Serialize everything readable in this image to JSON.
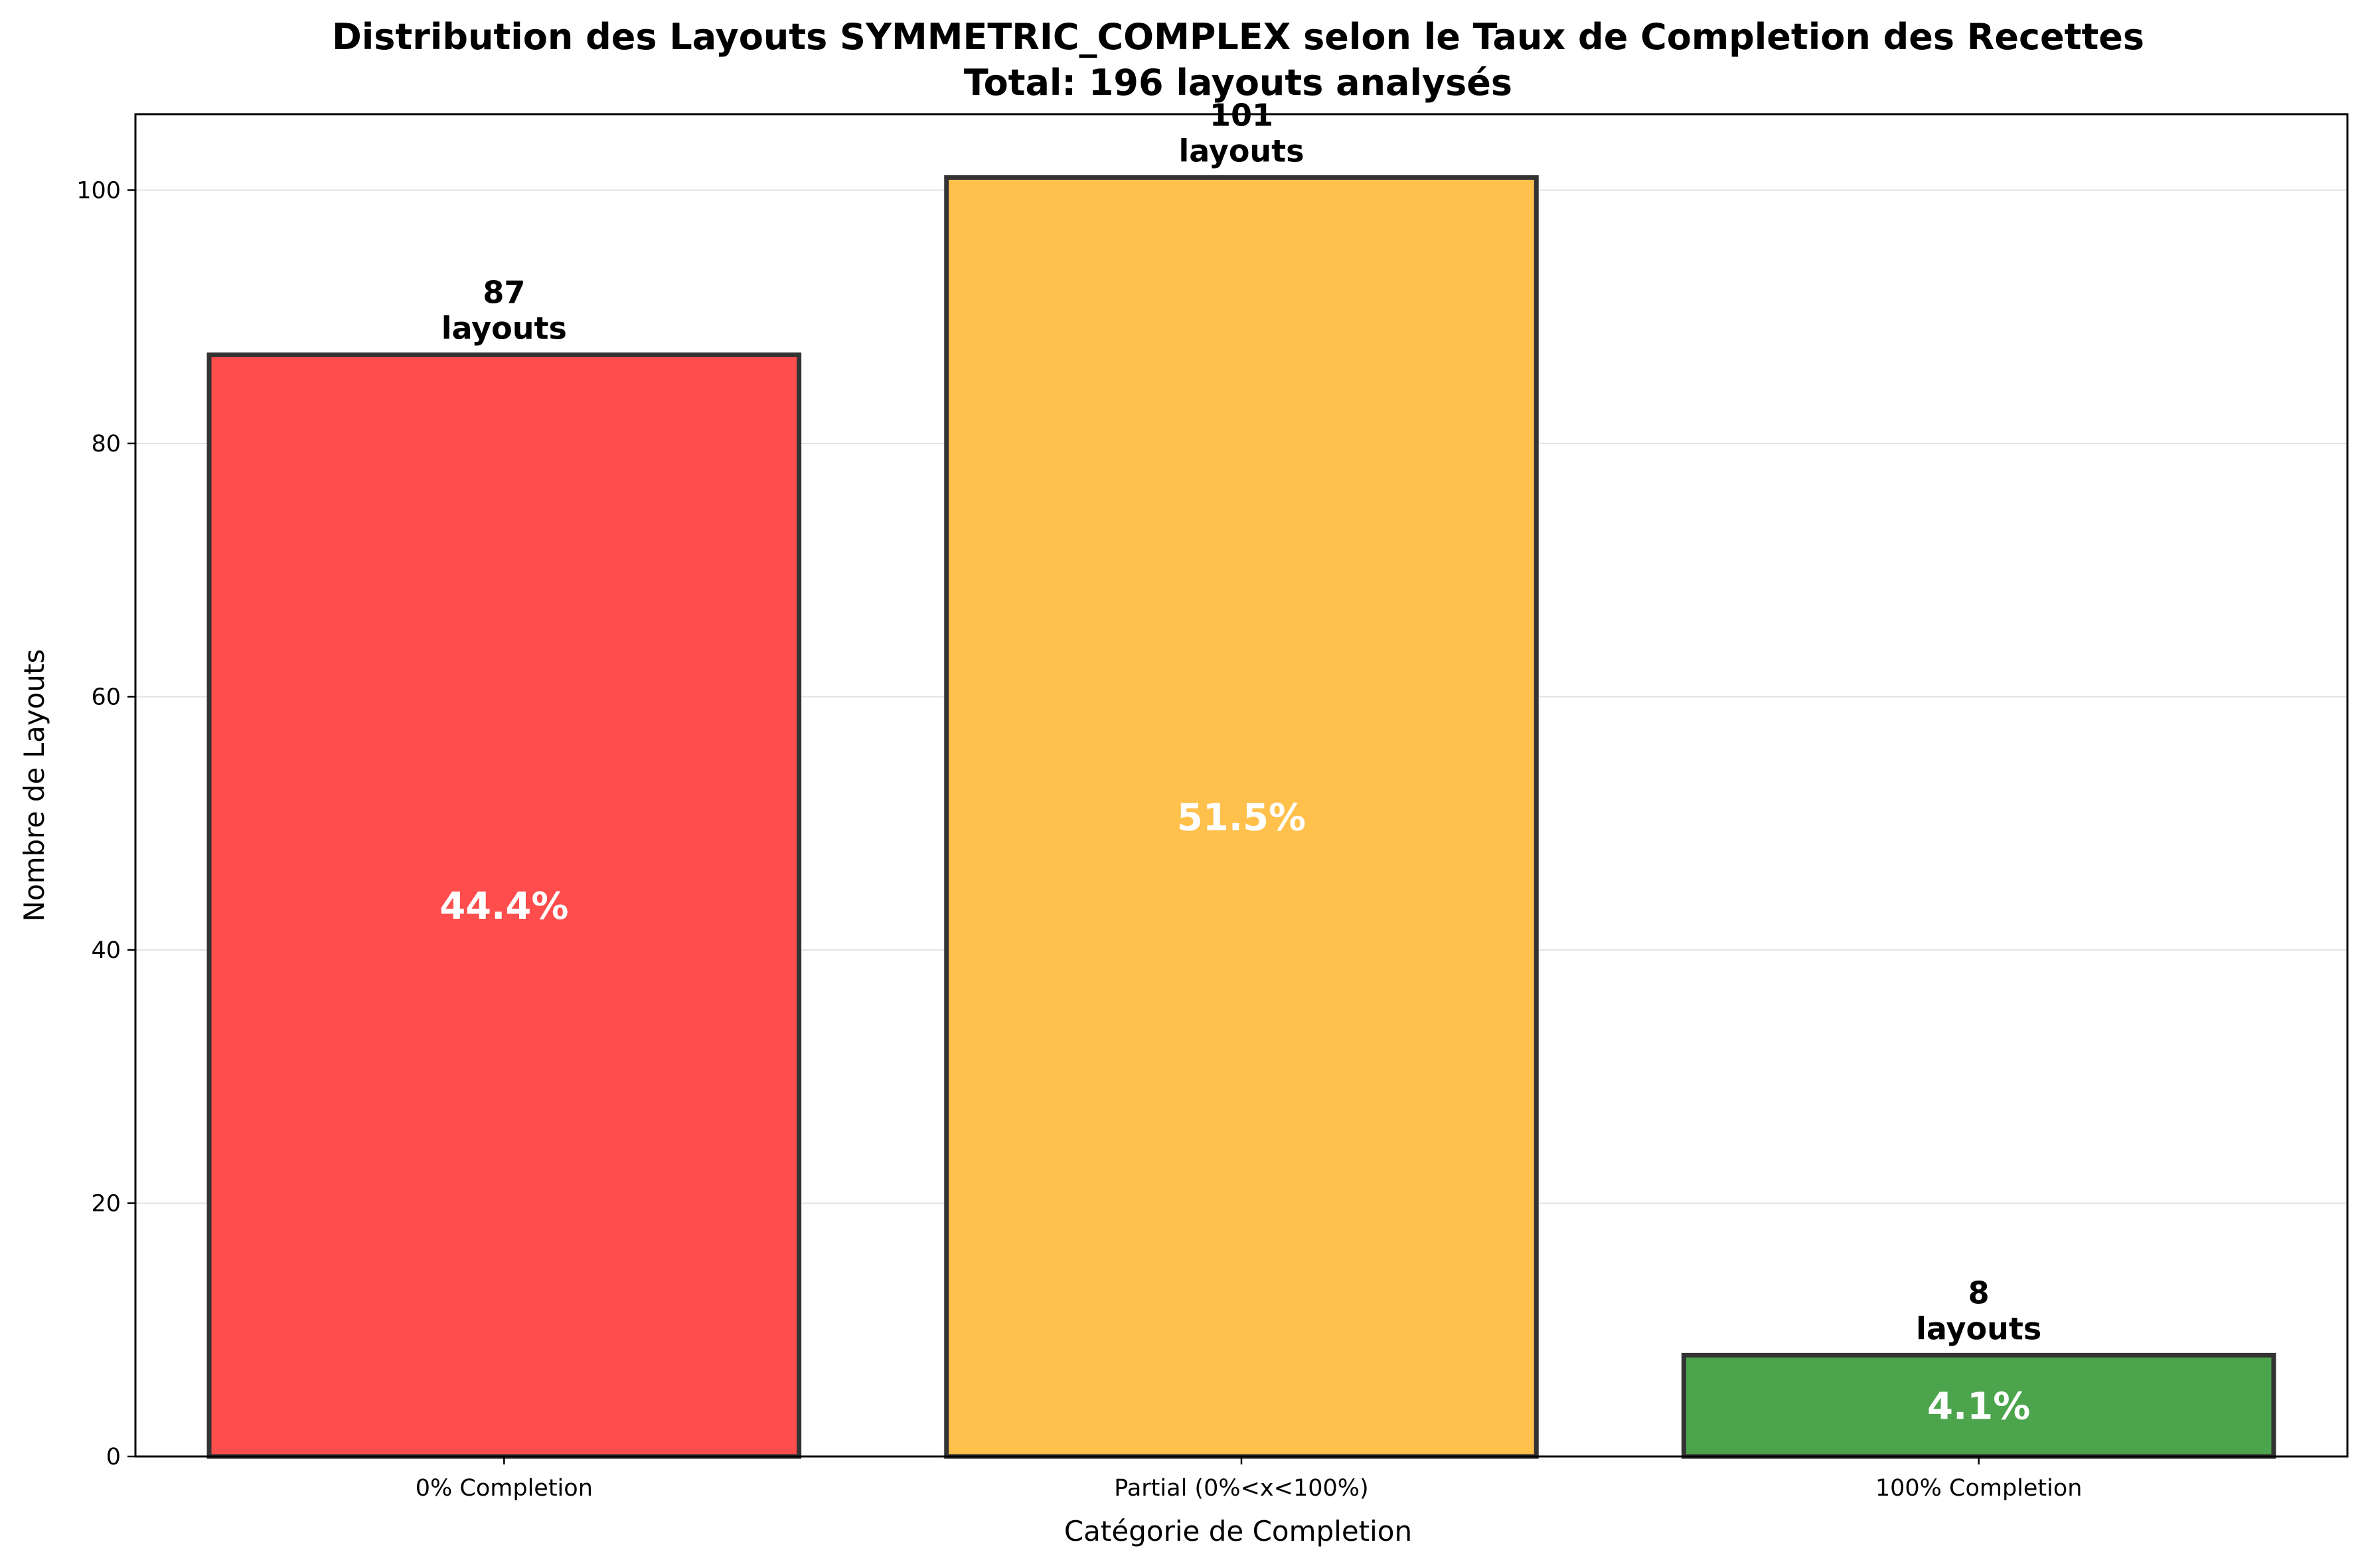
{
  "chart_data": {
    "type": "bar",
    "title_line1": "Distribution des Layouts SYMMETRIC_COMPLEX selon le Taux de Completion des Recettes",
    "title_line2": "Total: 196 layouts analysés",
    "xlabel": "Catégorie de Completion",
    "ylabel": "Nombre de Layouts",
    "categories": [
      "0% Completion",
      "Partial (0%<x<100%)",
      "100% Completion"
    ],
    "values": [
      87,
      101,
      8
    ],
    "colors": [
      "#ff4c4c",
      "#ffc04c",
      "#4ca44c"
    ],
    "count_label_line1": [
      "87",
      "101",
      "8"
    ],
    "count_label_line2": [
      "layouts",
      "layouts",
      "layouts"
    ],
    "percent_labels": [
      "44.4%",
      "51.5%",
      "4.1%"
    ],
    "ylim": [
      0,
      106
    ],
    "yticks": [
      0,
      20,
      40,
      60,
      80,
      100
    ],
    "grid": "y",
    "legend": "none"
  }
}
